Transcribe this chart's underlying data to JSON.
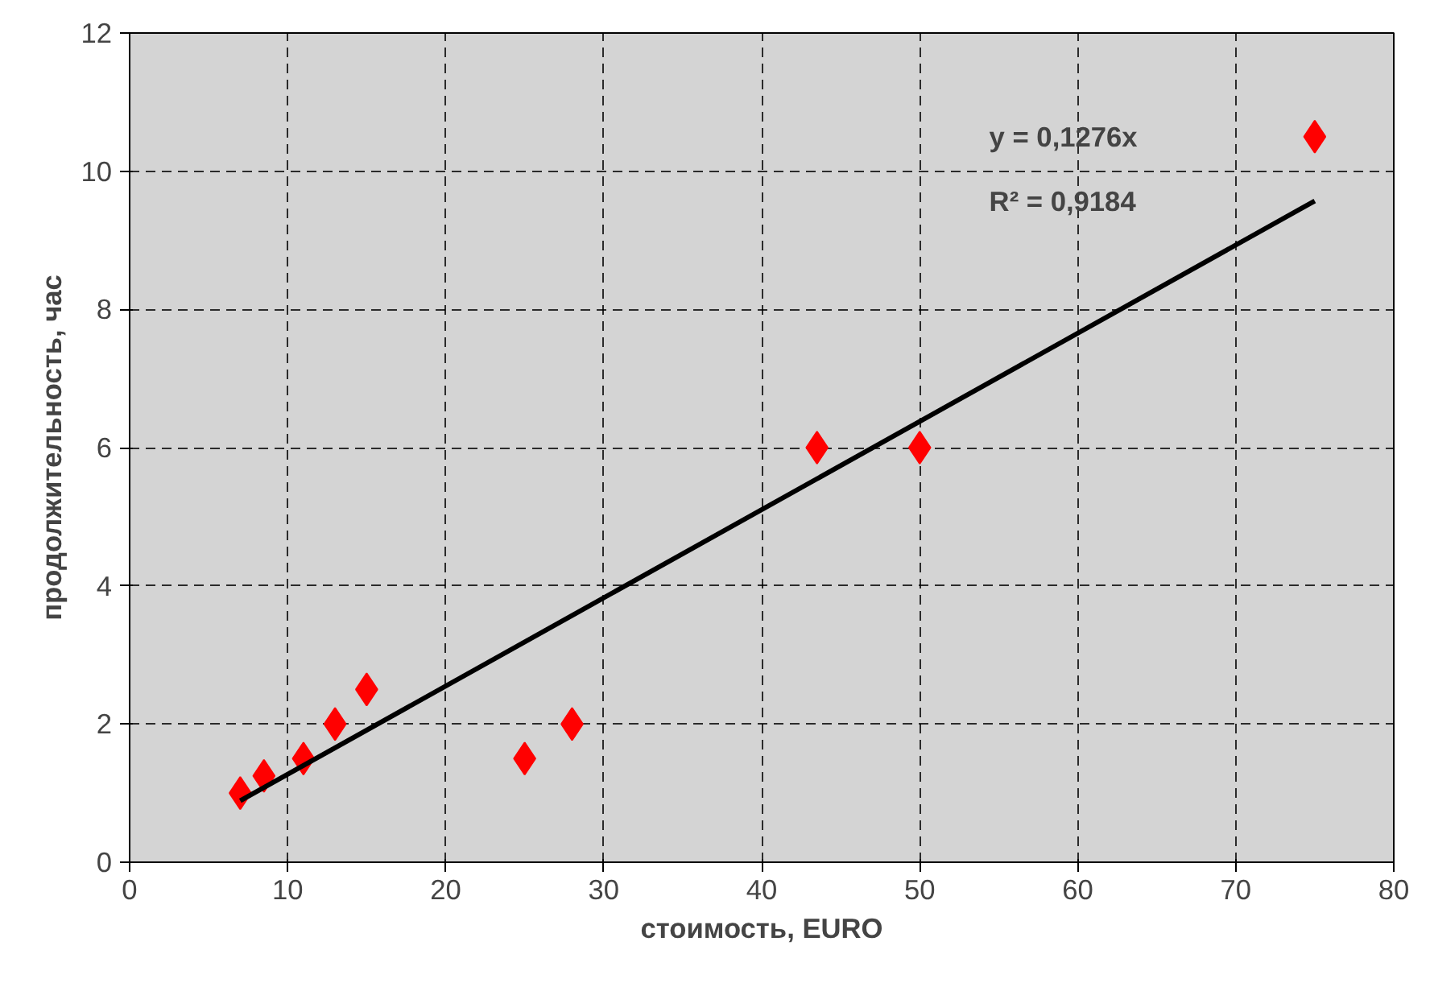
{
  "chart_data": {
    "type": "scatter",
    "xlabel": "стоимость, EURO",
    "ylabel": "продолжительность, час",
    "x": [
      7,
      8.5,
      11,
      13,
      15,
      25,
      28,
      43.5,
      50,
      75
    ],
    "series": [
      {
        "color": "#ff0000",
        "marker": "diamond",
        "values": [
          1,
          1.25,
          1.5,
          2,
          2.5,
          1.5,
          2,
          6,
          6,
          10.5
        ]
      },
      {
        "type": "line",
        "color": "#000000",
        "x": [
          7,
          75
        ],
        "values": [
          0.89,
          9.57
        ]
      }
    ],
    "xlim": [
      0,
      80
    ],
    "xticks": [
      0,
      10,
      20,
      30,
      40,
      50,
      60,
      70,
      80
    ],
    "ylim": [
      0,
      12
    ],
    "yticks": [
      0,
      2,
      4,
      6,
      8,
      10,
      12
    ],
    "grid": true,
    "annotations": [
      "y = 0,1276x",
      "R² = 0,9184"
    ]
  }
}
